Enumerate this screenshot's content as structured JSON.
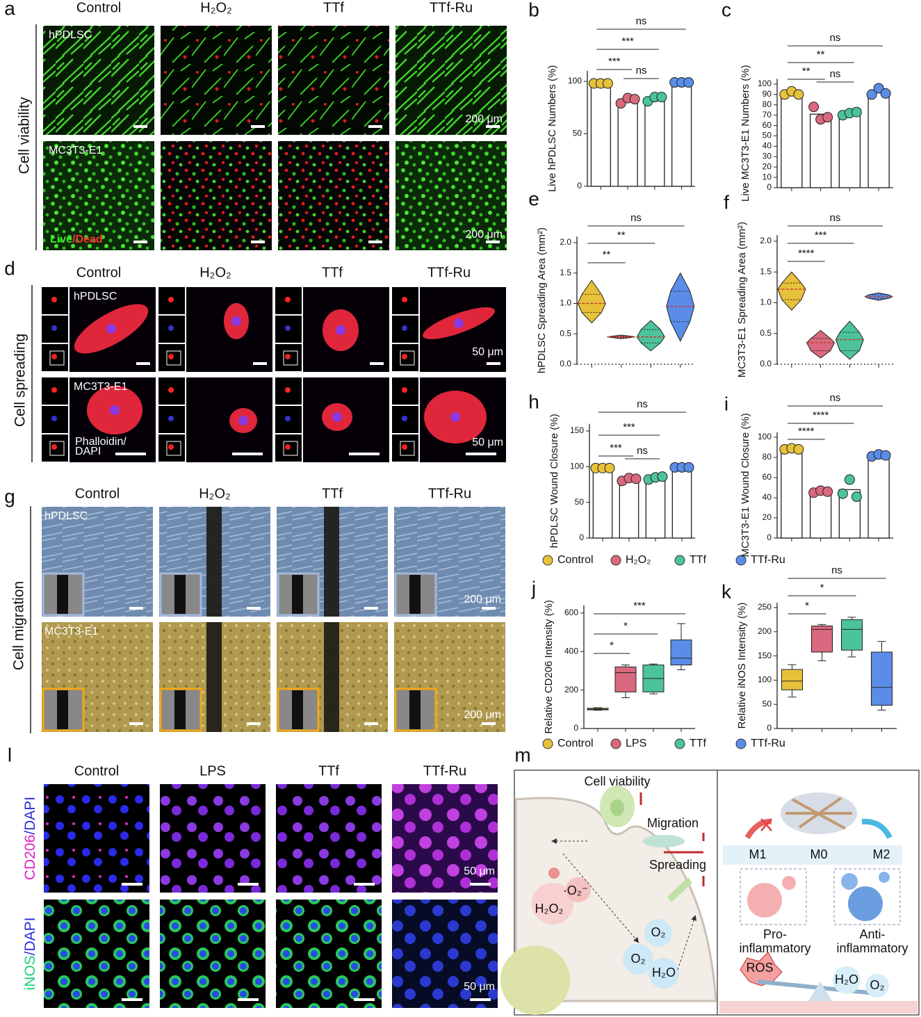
{
  "panel_letters": [
    "a",
    "b",
    "c",
    "d",
    "e",
    "f",
    "g",
    "h",
    "i",
    "j",
    "k",
    "l",
    "m"
  ],
  "panel_a": {
    "columns": [
      "Control",
      "H₂O₂",
      "TTf",
      "TTf-Ru"
    ],
    "row_title": "Cell viability",
    "row_labels": [
      "hPDLSC",
      "MC3T3-E1"
    ],
    "scale_bars": [
      "200 μm",
      "200 μm"
    ],
    "stain": [
      "Live",
      "/Dead"
    ]
  },
  "panel_d": {
    "columns": [
      "Control",
      "H₂O₂",
      "TTf",
      "TTf-Ru"
    ],
    "row_title": "Cell spreading",
    "row_labels": [
      "hPDLSC",
      "MC3T3-E1"
    ],
    "scale_bars": [
      "50 μm",
      "50 μm"
    ],
    "stain": [
      "Phalloidin/",
      "DAPI"
    ]
  },
  "panel_g": {
    "columns": [
      "Control",
      "H₂O₂",
      "TTf",
      "TTf-Ru"
    ],
    "row_title": "Cell migration",
    "row_labels": [
      "hPDLSC",
      "MC3T3-E1"
    ],
    "scale_bars": [
      "200 μm",
      "200 μm"
    ]
  },
  "panel_l": {
    "columns": [
      "Control",
      "LPS",
      "TTf",
      "TTf-Ru"
    ],
    "row_labels": [
      [
        "CD206",
        "/DAPI"
      ],
      [
        "iNOS",
        "/DAPI"
      ]
    ],
    "scale_bars": [
      "50 μm",
      "50 μm"
    ]
  },
  "panel_m": {
    "labels": [
      "Cell viability",
      "Migration",
      "Spreading",
      "·O₂⁻",
      "H₂O₂",
      "O₂",
      "O₂",
      "H₂O",
      "M1",
      "M0",
      "M2",
      "Pro-",
      "inflammatory",
      "Anti-",
      "inflammatory",
      "ROS",
      "H₂O",
      "O₂"
    ]
  },
  "legends": [
    {
      "items": [
        {
          "name": "Control",
          "color": "#e8c13a"
        },
        {
          "name": "H₂O₂",
          "color": "#d9697e"
        },
        {
          "name": "TTf",
          "color": "#4cc39a"
        },
        {
          "name": "TTf-Ru",
          "color": "#5b8de8"
        }
      ]
    },
    {
      "items": [
        {
          "name": "Control",
          "color": "#e8c13a"
        },
        {
          "name": "LPS",
          "color": "#d9697e"
        },
        {
          "name": "TTf",
          "color": "#4cc39a"
        },
        {
          "name": "TTf-Ru",
          "color": "#5b8de8"
        }
      ]
    }
  ],
  "chart_data": [
    {
      "type": "bar",
      "ylabel": "Live hPDLSC Numbers (%)",
      "ylim": [
        0,
        110
      ],
      "yticks": [
        0,
        50,
        100
      ],
      "colors": [
        "#e8c13a",
        "#d9697e",
        "#4cc39a",
        "#5b8de8"
      ],
      "values": [
        98,
        82,
        84,
        99
      ],
      "points": [
        [
          98,
          98,
          98
        ],
        [
          79,
          84,
          83
        ],
        [
          81,
          85,
          85
        ],
        [
          99,
          99,
          99
        ]
      ],
      "annotations": [
        "ns",
        "***",
        "***",
        "ns"
      ]
    },
    {
      "type": "bar",
      "ylabel": "Live MC3T3-E1 Numbers (%)",
      "ylim": [
        0,
        105
      ],
      "yticks": [
        0,
        10,
        20,
        30,
        40,
        50,
        60,
        70,
        80,
        90,
        100
      ],
      "colors": [
        "#e8c13a",
        "#d9697e",
        "#4cc39a",
        "#5b8de8"
      ],
      "values": [
        91,
        71,
        72,
        92
      ],
      "points": [
        [
          90,
          93,
          90
        ],
        [
          78,
          66,
          68
        ],
        [
          70,
          72,
          73
        ],
        [
          90,
          96,
          91
        ]
      ],
      "annotations": [
        "ns",
        "**",
        "**",
        "ns"
      ]
    },
    {
      "type": "violin",
      "ylabel": "hPDLSC Spreading Area (mm²)",
      "ylim": [
        0,
        2.1
      ],
      "yticks": [
        {
          "value": 0,
          "label": "0.0"
        },
        0.5,
        {
          "value": 1,
          "label": "1.0"
        },
        1.5,
        {
          "value": 2,
          "label": "2.0"
        }
      ],
      "colors": [
        "#e8c13a",
        "#d9697e",
        "#4cc39a",
        "#5b8de8"
      ],
      "boxes": [
        {
          "min": 0.68,
          "q1": 0.85,
          "median": 1.0,
          "q3": 1.15,
          "max": 1.38
        },
        {
          "min": 0.42,
          "q1": 0.44,
          "median": 0.45,
          "q3": 0.46,
          "max": 0.48
        },
        {
          "min": 0.22,
          "q1": 0.35,
          "median": 0.45,
          "q3": 0.57,
          "max": 0.72
        },
        {
          "min": 0.38,
          "q1": 0.7,
          "median": 0.95,
          "q3": 1.2,
          "max": 1.5
        }
      ],
      "annotations": [
        "ns",
        "**",
        "**"
      ]
    },
    {
      "type": "violin",
      "ylabel": "MC3T3-E1 Spreading Area (mm²)",
      "ylim": [
        0,
        2.1
      ],
      "yticks": [
        {
          "value": 0,
          "label": "0.0"
        },
        0.5,
        {
          "value": 1,
          "label": "1.0"
        },
        1.5,
        {
          "value": 2,
          "label": "2.0"
        }
      ],
      "colors": [
        "#e8c13a",
        "#d9697e",
        "#4cc39a",
        "#5b8de8"
      ],
      "boxes": [
        {
          "min": 0.88,
          "q1": 1.05,
          "median": 1.22,
          "q3": 1.32,
          "max": 1.5
        },
        {
          "min": 0.1,
          "q1": 0.22,
          "median": 0.35,
          "q3": 0.42,
          "max": 0.55
        },
        {
          "min": 0.08,
          "q1": 0.22,
          "median": 0.4,
          "q3": 0.52,
          "max": 0.7
        },
        {
          "min": 1.04,
          "q1": 1.07,
          "median": 1.1,
          "q3": 1.13,
          "max": 1.16
        }
      ],
      "annotations": [
        "ns",
        "***",
        "****"
      ]
    },
    {
      "type": "bar",
      "ylabel": "hPDLSC Wound Closure (%)",
      "ylim": [
        0,
        160
      ],
      "yticks": [
        0,
        50,
        100,
        150
      ],
      "colors": [
        "#e8c13a",
        "#d9697e",
        "#4cc39a",
        "#5b8de8"
      ],
      "values": [
        98,
        82,
        84,
        99
      ],
      "points": [
        [
          98,
          98,
          98
        ],
        [
          80,
          84,
          83
        ],
        [
          82,
          85,
          86
        ],
        [
          99,
          99,
          99
        ]
      ],
      "annotations": [
        "ns",
        "***",
        "***",
        "ns"
      ]
    },
    {
      "type": "bar",
      "ylabel": "MC3T3-E1 Wound Closure (%)",
      "ylim": [
        0,
        105
      ],
      "yticks": [
        0,
        20,
        40,
        60,
        80,
        100
      ],
      "colors": [
        "#e8c13a",
        "#d9697e",
        "#4cc39a",
        "#5b8de8"
      ],
      "values": [
        88,
        46,
        48,
        82
      ],
      "points": [
        [
          88,
          89,
          88
        ],
        [
          45,
          47,
          46
        ],
        [
          44,
          58,
          41
        ],
        [
          81,
          83,
          82
        ]
      ],
      "annotations": [
        "ns",
        "****",
        "****"
      ]
    },
    {
      "type": "box",
      "ylabel": "Relative CD206 Intensity (%)",
      "ylim": [
        0,
        640
      ],
      "yticks": [
        0,
        200,
        400,
        600
      ],
      "colors": [
        "#e8c13a",
        "#d9697e",
        "#4cc39a",
        "#5b8de8"
      ],
      "boxes": [
        {
          "min": 95,
          "q1": 97,
          "median": 100,
          "q3": 105,
          "max": 108
        },
        {
          "min": 160,
          "q1": 190,
          "median": 290,
          "q3": 320,
          "max": 330
        },
        {
          "min": 180,
          "q1": 190,
          "median": 260,
          "q3": 330,
          "max": 335
        },
        {
          "min": 305,
          "q1": 330,
          "median": 365,
          "q3": 460,
          "max": 545
        }
      ],
      "annotations": [
        "***",
        "*",
        "*"
      ]
    },
    {
      "type": "box",
      "ylabel": "Relative iNOS Intensity (%)",
      "ylim": [
        0,
        260
      ],
      "yticks": [
        0,
        50,
        100,
        150,
        200,
        250
      ],
      "colors": [
        "#e8c13a",
        "#d9697e",
        "#4cc39a",
        "#5b8de8"
      ],
      "boxes": [
        {
          "min": 65,
          "q1": 80,
          "median": 98,
          "q3": 122,
          "max": 132
        },
        {
          "min": 140,
          "q1": 158,
          "median": 205,
          "q3": 212,
          "max": 215
        },
        {
          "min": 148,
          "q1": 162,
          "median": 205,
          "q3": 225,
          "max": 230
        },
        {
          "min": 38,
          "q1": 48,
          "median": 85,
          "q3": 158,
          "max": 180
        }
      ],
      "annotations": [
        "ns",
        "*",
        "*"
      ]
    }
  ]
}
